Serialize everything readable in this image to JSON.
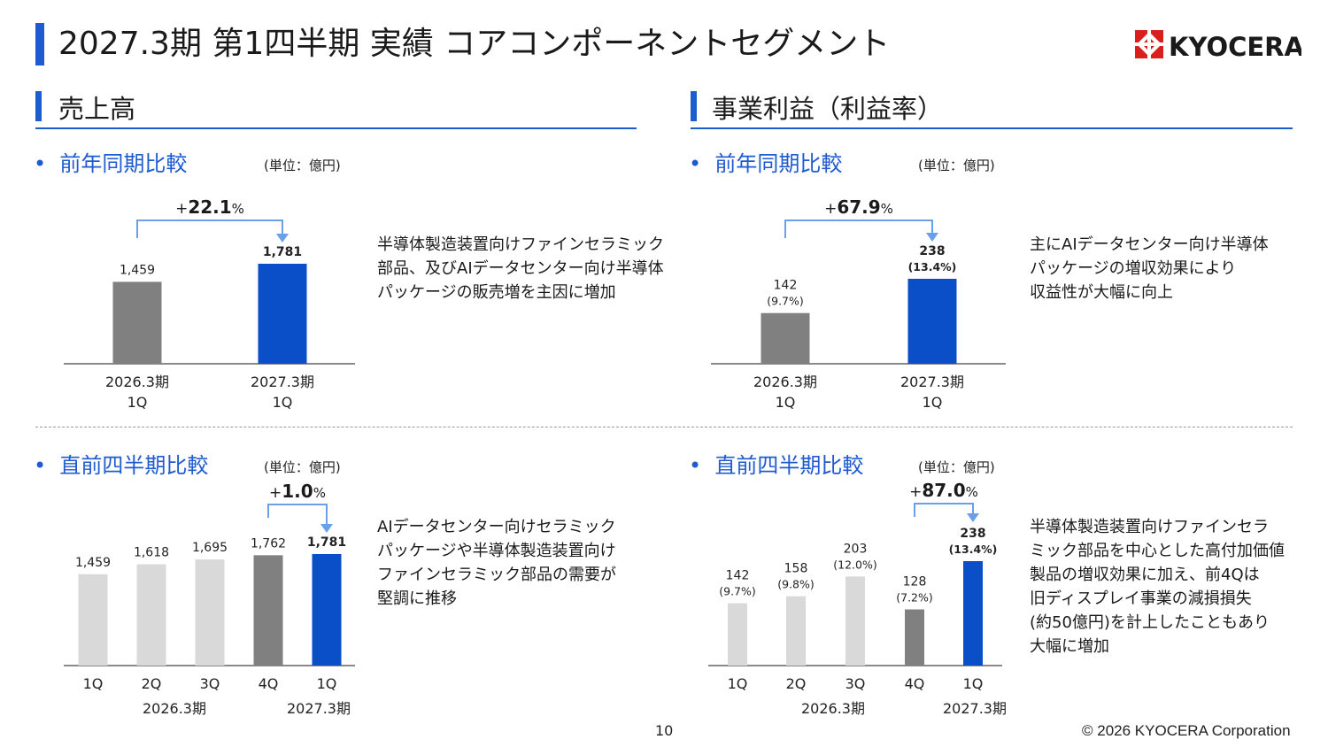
{
  "page": {
    "title": "2027.3期 第1四半期 実績 コアコンポーネントセグメント",
    "logo_text": "KYOCERA",
    "page_number": "10",
    "copyright": "© 2026 KYOCERA Corporation"
  },
  "sections": {
    "sales": {
      "title": "売上高"
    },
    "profit": {
      "title": "事業利益（利益率）"
    }
  },
  "panels": {
    "sales_yoy": {
      "subtitle": "前年同期比較",
      "unit": "(単位：億円)",
      "change": "+22.1%",
      "description": "半導体製造装置向けファインセラミック\n部品、及びAIデータセンター向け半導体\nパッケージの販売増を主因に増加"
    },
    "profit_yoy": {
      "subtitle": "前年同期比較",
      "unit": "(単位：億円)",
      "change": "+67.9%",
      "description": "主にAIデータセンター向け半導体\nパッケージの増収効果により\n収益性が大幅に向上"
    },
    "sales_qoq": {
      "subtitle": "直前四半期比較",
      "unit": "(単位：億円)",
      "change": "+1.0%",
      "description": "AIデータセンター向けセラミック\nパッケージや半導体製造装置向け\nファインセラミック部品の需要が\n堅調に推移"
    },
    "profit_qoq": {
      "subtitle": "直前四半期比較",
      "unit": "(単位：億円)",
      "change": "+87.0%",
      "description": "半導体製造装置向けファインセラ\nミック部品を中心とした高付加価値\n製品の増収効果に加え、前4Qは\n旧ディスプレイ事業の減損損失\n(約50億円)を計上したこともあり\n大幅に増加"
    }
  },
  "chart_data": [
    {
      "id": "sales_yoy",
      "type": "bar",
      "categories": [
        "2026.3期\n1Q",
        "2027.3期\n1Q"
      ],
      "values": [
        1459,
        1781
      ],
      "labels": [
        "1,459",
        "1,781"
      ],
      "colors": [
        "#808080",
        "#0a4fc7"
      ],
      "change_label": "+22.1%"
    },
    {
      "id": "profit_yoy",
      "type": "bar",
      "categories": [
        "2026.3期\n1Q",
        "2027.3期\n1Q"
      ],
      "values": [
        142,
        238
      ],
      "labels": [
        "142",
        "238"
      ],
      "margins": [
        "(9.7%)",
        "(13.4%)"
      ],
      "colors": [
        "#808080",
        "#0a4fc7"
      ],
      "change_label": "+67.9%"
    },
    {
      "id": "sales_qoq",
      "type": "bar",
      "categories": [
        "1Q",
        "2Q",
        "3Q",
        "4Q",
        "1Q"
      ],
      "group_labels": [
        "2026.3期",
        "2027.3期"
      ],
      "values": [
        1459,
        1618,
        1695,
        1762,
        1781
      ],
      "labels": [
        "1,459",
        "1,618",
        "1,695",
        "1,762",
        "1,781"
      ],
      "colors": [
        "#d9d9d9",
        "#d9d9d9",
        "#d9d9d9",
        "#808080",
        "#0a4fc7"
      ],
      "change_label": "+1.0%"
    },
    {
      "id": "profit_qoq",
      "type": "bar",
      "categories": [
        "1Q",
        "2Q",
        "3Q",
        "4Q",
        "1Q"
      ],
      "group_labels": [
        "2026.3期",
        "2027.3期"
      ],
      "values": [
        142,
        158,
        203,
        128,
        238
      ],
      "labels": [
        "142",
        "158",
        "203",
        "128",
        "238"
      ],
      "margins": [
        "(9.7%)",
        "(9.8%)",
        "(12.0%)",
        "(7.2%)",
        "(13.4%)"
      ],
      "colors": [
        "#d9d9d9",
        "#d9d9d9",
        "#d9d9d9",
        "#808080",
        "#0a4fc7"
      ],
      "change_label": "+87.0%"
    }
  ]
}
